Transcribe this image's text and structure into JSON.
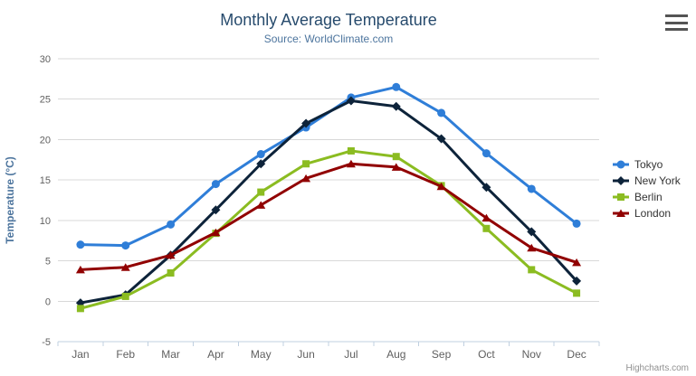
{
  "header": {
    "title": "Monthly Average Temperature",
    "subtitle": "Source: WorldClimate.com"
  },
  "menu": {
    "icon": "hamburger-icon"
  },
  "credits": {
    "label": "Highcharts.com"
  },
  "colors": {
    "title": "#274b6d",
    "subtitle": "#4d759e",
    "axis_title": "#4d759e",
    "tick_label": "#606060",
    "grid": "#d8d8d8",
    "axis_line": "#c0d0e0",
    "legend_text": "#333333",
    "credits": "#909090",
    "tokyo": "#2f7ed8",
    "new_york": "#0d233a",
    "berlin": "#8bbc21",
    "london": "#910000"
  },
  "chart_data": {
    "type": "line",
    "title": "Monthly Average Temperature",
    "subtitle": "Source: WorldClimate.com",
    "xlabel": "",
    "ylabel": "Temperature (°C)",
    "ylim": [
      -5,
      30
    ],
    "yticks": [
      -5,
      0,
      5,
      10,
      15,
      20,
      25,
      30
    ],
    "grid": "horizontal",
    "legend_position": "right",
    "categories": [
      "Jan",
      "Feb",
      "Mar",
      "Apr",
      "May",
      "Jun",
      "Jul",
      "Aug",
      "Sep",
      "Oct",
      "Nov",
      "Dec"
    ],
    "series": [
      {
        "name": "Tokyo",
        "color": "#2f7ed8",
        "marker": "circle",
        "values": [
          7.0,
          6.9,
          9.5,
          14.5,
          18.2,
          21.5,
          25.2,
          26.5,
          23.3,
          18.3,
          13.9,
          9.6
        ]
      },
      {
        "name": "New York",
        "color": "#0d233a",
        "marker": "diamond",
        "values": [
          -0.2,
          0.8,
          5.7,
          11.3,
          17.0,
          22.0,
          24.8,
          24.1,
          20.1,
          14.1,
          8.6,
          2.5
        ]
      },
      {
        "name": "Berlin",
        "color": "#8bbc21",
        "marker": "square",
        "values": [
          -0.9,
          0.6,
          3.5,
          8.4,
          13.5,
          17.0,
          18.6,
          17.9,
          14.3,
          9.0,
          3.9,
          1.0
        ]
      },
      {
        "name": "London",
        "color": "#910000",
        "marker": "triangle",
        "values": [
          3.9,
          4.2,
          5.7,
          8.5,
          11.9,
          15.2,
          17.0,
          16.6,
          14.2,
          10.3,
          6.6,
          4.8
        ]
      }
    ]
  }
}
